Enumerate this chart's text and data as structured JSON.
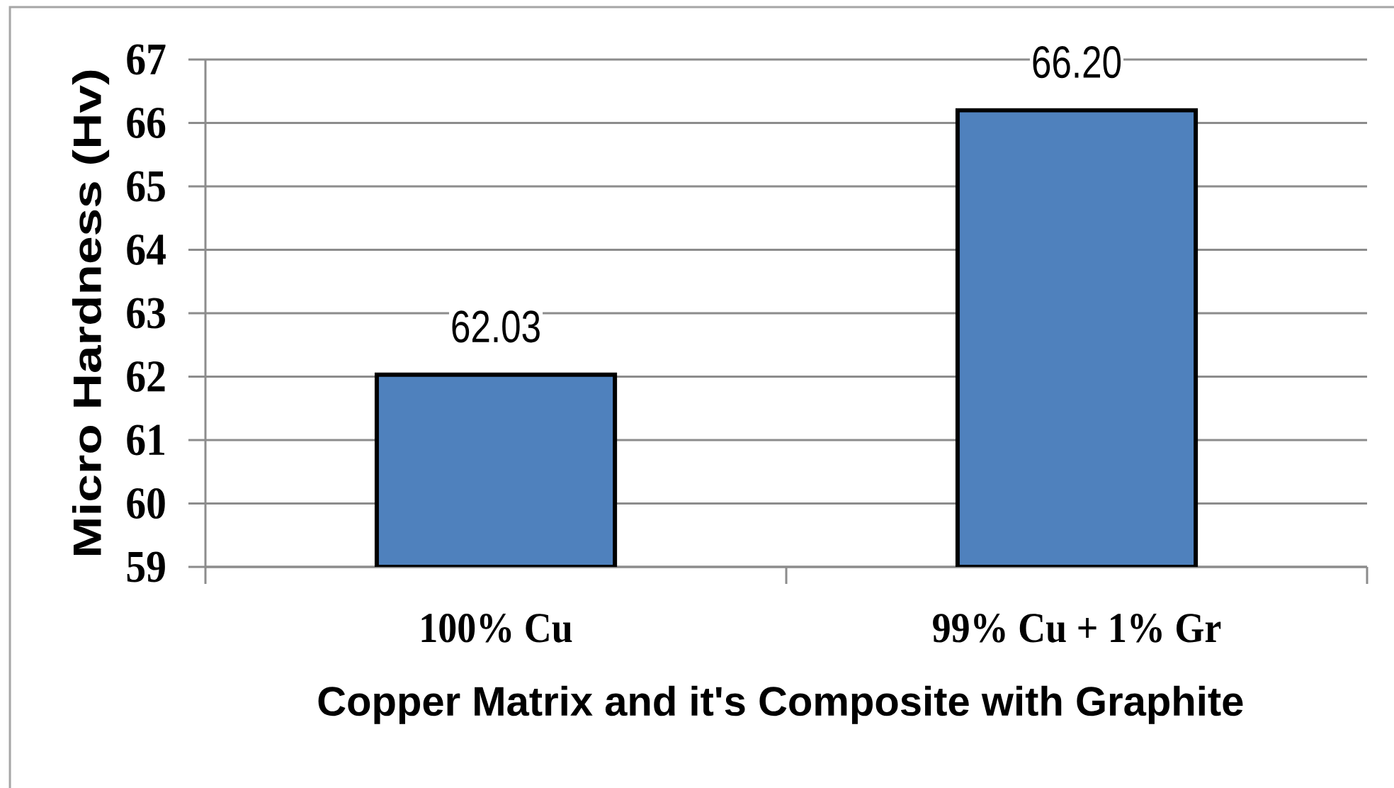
{
  "chart_data": {
    "type": "bar",
    "categories": [
      "100% Cu",
      "99% Cu + 1% Gr"
    ],
    "values": [
      62.03,
      66.2
    ],
    "value_labels": [
      "62.03",
      "66.20"
    ],
    "color": "#4f81bd",
    "xlabel": "Copper Matrix and it's Composite with Graphite",
    "ylabel": "Micro Hardness (Hv)",
    "ylim": [
      59,
      67
    ],
    "yticks": [
      59,
      60,
      61,
      62,
      63,
      64,
      65,
      66,
      67
    ],
    "grid": "y"
  }
}
